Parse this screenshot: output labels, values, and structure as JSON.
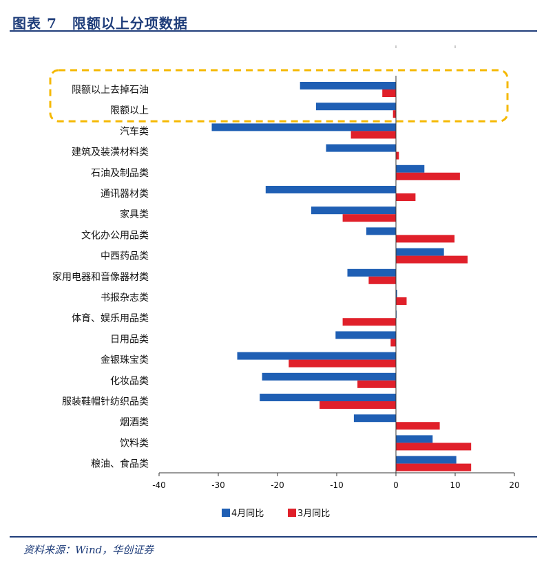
{
  "header": {
    "prefix": "图表 7",
    "title": "限额以上分项数据"
  },
  "footer": {
    "source": "资料来源：Wind，华创证券"
  },
  "colors": {
    "april": "#1f5fb4",
    "march": "#e0202a",
    "highlight": "#f5b800",
    "axis": "#333333"
  },
  "chart_data": {
    "type": "bar",
    "orientation": "horizontal",
    "categories": [
      "限额以上去掉石油",
      "限额以上",
      "汽车类",
      "建筑及装潢材料类",
      "石油及制品类",
      "通讯器材类",
      "家具类",
      "文化办公用品类",
      "中西药品类",
      "家用电器和音像器材类",
      "书报杂志类",
      "体育、娱乐用品类",
      "日用品类",
      "金银珠宝类",
      "化妆品类",
      "服装鞋帽针纺织品类",
      "烟酒类",
      "饮料类",
      "粮油、食品类"
    ],
    "series": [
      {
        "name": "4月同比",
        "values": [
          -16.2,
          -13.5,
          -31.1,
          -11.8,
          4.8,
          -22.0,
          -14.3,
          -5.0,
          8.1,
          -8.2,
          0.2,
          0.1,
          -10.2,
          -26.8,
          -22.6,
          -23.0,
          -7.1,
          6.2,
          10.2
        ]
      },
      {
        "name": "3月同比",
        "values": [
          -2.3,
          -0.5,
          -7.6,
          0.5,
          10.8,
          3.3,
          -9.0,
          9.9,
          12.1,
          -4.6,
          1.8,
          -9.0,
          -0.9,
          -18.1,
          -6.5,
          -12.9,
          7.4,
          12.7,
          12.7
        ]
      }
    ],
    "xlim": [
      -40,
      20
    ],
    "xticks": [
      -40,
      -30,
      -20,
      -10,
      0,
      10,
      20
    ],
    "legend": "bottom-center",
    "highlight_categories": [
      "限额以上去掉石油",
      "限额以上"
    ]
  }
}
